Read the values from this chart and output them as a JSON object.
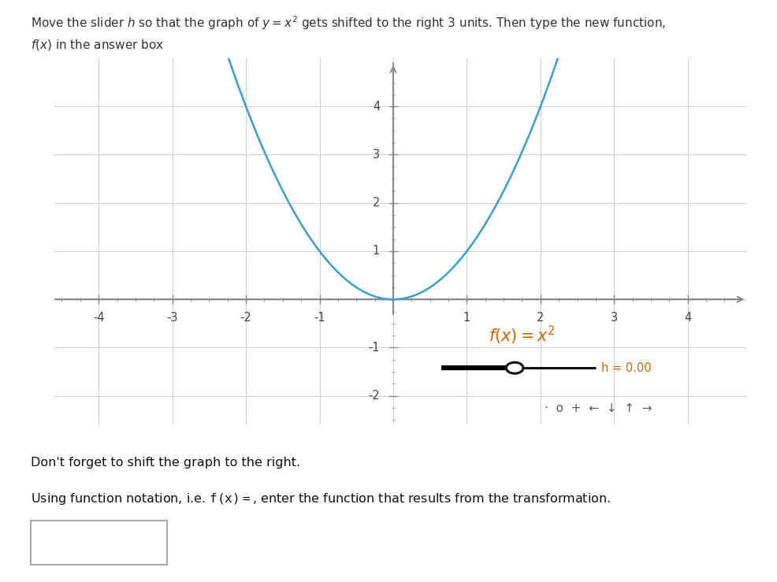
{
  "title_line1": "Move the slider $h$ so that the graph of $y = x^2$ gets shifted to the right 3 units. Then type the new function,",
  "title_line2": "$f(x)$ in the answer box",
  "xlim": [
    -4.6,
    4.8
  ],
  "ylim": [
    -2.6,
    5.0
  ],
  "xticks": [
    -4,
    -3,
    -2,
    -1,
    1,
    2,
    3,
    4
  ],
  "yticks": [
    -2,
    -1,
    1,
    2,
    3,
    4
  ],
  "curve_color": "#3b9fcb",
  "curve_lw": 1.8,
  "grid_color": "#d0d0d0",
  "axis_color": "#888888",
  "fx_label_color": "#cc6600",
  "h_label": "h = 0.00",
  "h_label_color": "#cc6600",
  "slider_line_color": "#111111",
  "slider_circle_color": "#ffffff",
  "slider_circle_edge": "#111111",
  "bg_color": "#ffffff",
  "instruction_text": "Don't forget to shift the graph to the right.",
  "bottom_symbols": "·  o  +  ←  ↓  ↑  →"
}
